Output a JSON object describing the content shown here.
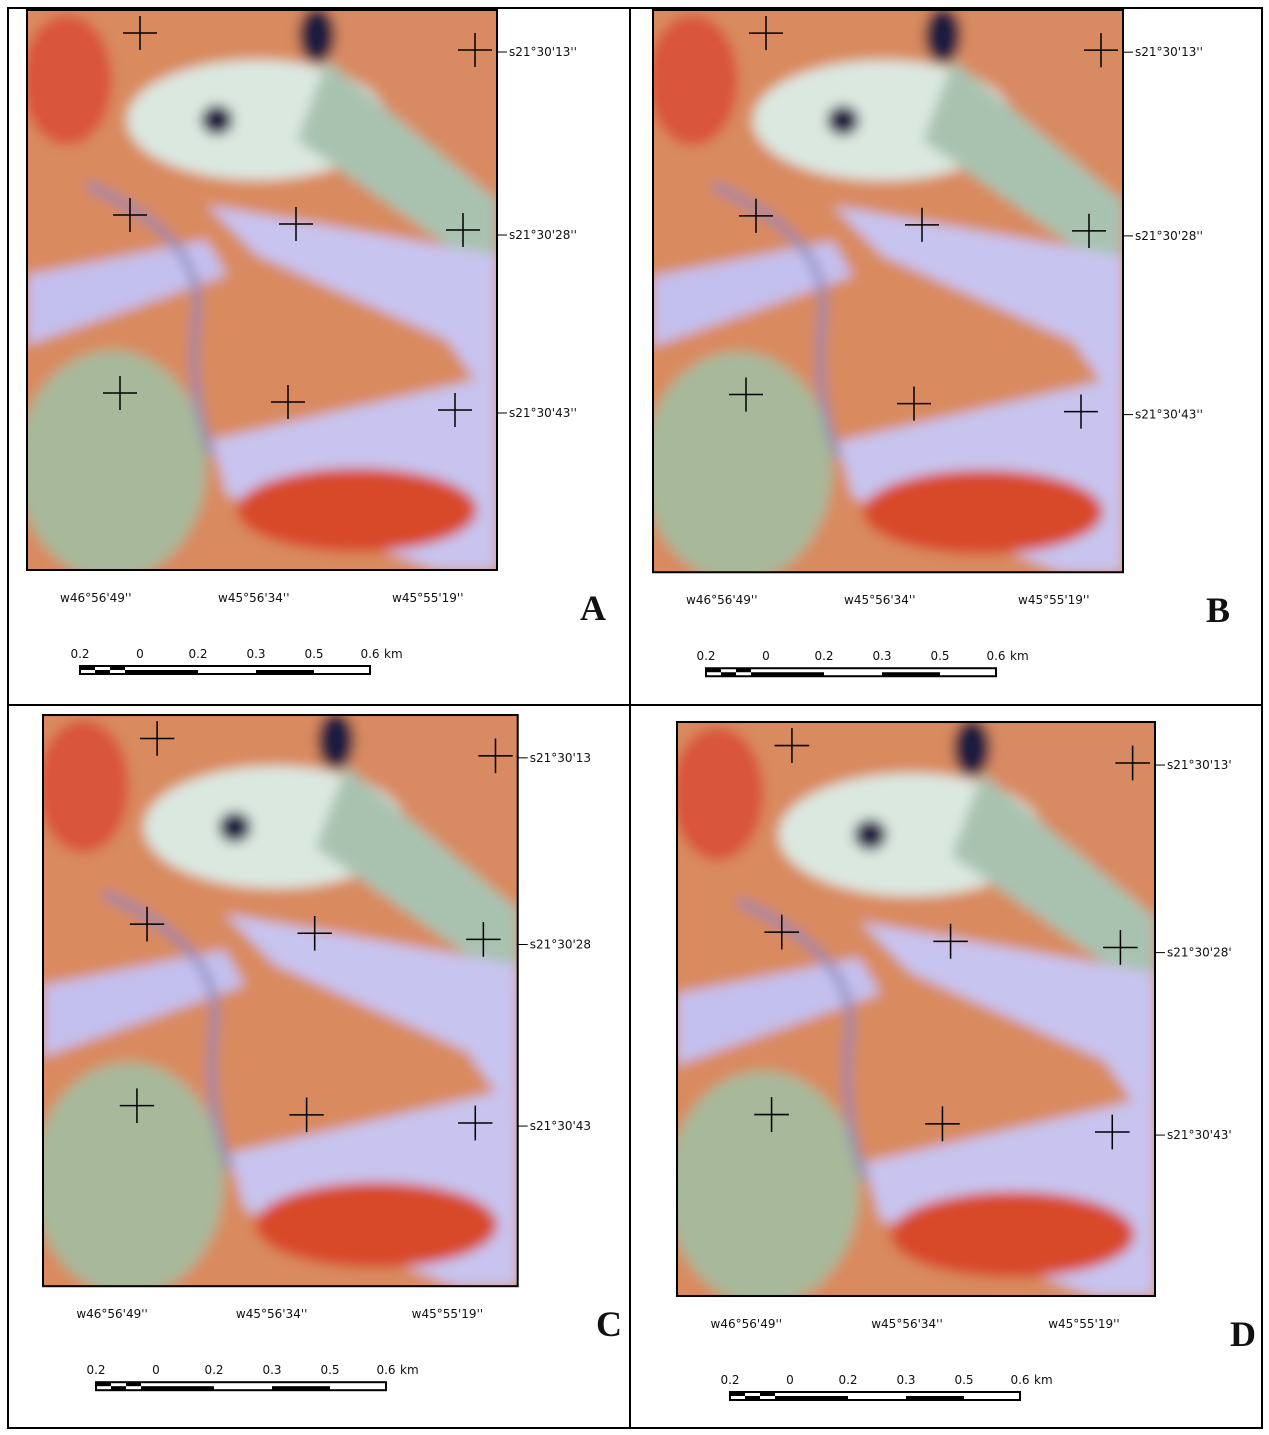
{
  "panels": [
    {
      "letter": "A",
      "latitudes": [
        "s21°30'13''",
        "s21°30'28''",
        "s21°30'43''"
      ],
      "longitudes": [
        "w46°56'49''",
        "w45°56'34''",
        "w45°55'19''"
      ],
      "scale": [
        "0.2",
        "0",
        "0.2",
        "0.3",
        "0.5",
        "0.6",
        "km"
      ]
    },
    {
      "letter": "B",
      "latitudes": [
        "s21°30'13''",
        "s21°30'28''",
        "s21°30'43''"
      ],
      "longitudes": [
        "w46°56'49''",
        "w45°56'34''",
        "w45°55'19''"
      ],
      "scale": [
        "0.2",
        "0",
        "0.2",
        "0.3",
        "0.5",
        "0.6",
        "km"
      ]
    },
    {
      "letter": "C",
      "latitudes": [
        "s21°30'13",
        "s21°30'28",
        "s21°30'43"
      ],
      "longitudes": [
        "w46°56'49''",
        "w45°56'34''",
        "w45°55'19''"
      ],
      "scale": [
        "0.2",
        "0",
        "0.2",
        "0.3",
        "0.5",
        "0.6",
        "km"
      ]
    },
    {
      "letter": "D",
      "latitudes": [
        "s21°30'13'",
        "s21°30'28'",
        "s21°30'43'"
      ],
      "longitudes": [
        "w46°56'49''",
        "w45°56'34''",
        "w45°55'19''"
      ],
      "scale": [
        "0.2",
        "0",
        "0.2",
        "0.3",
        "0.5",
        "0.6",
        "km"
      ]
    }
  ]
}
